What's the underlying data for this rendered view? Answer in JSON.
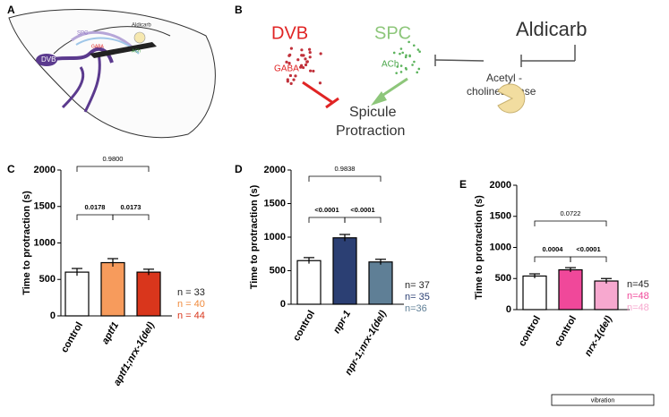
{
  "panel_a": {
    "label": "A",
    "dvb": "DVB",
    "spc": "SPC",
    "ach": "ACh",
    "gaba": "GABA",
    "drug": "Aldicarb"
  },
  "panel_b": {
    "label": "B",
    "dvb": "DVB",
    "gaba": "GABA",
    "spc": "SPC",
    "ach": "ACh",
    "drug": "Aldicarb",
    "enzyme_line1": "Acetyl -",
    "enzyme_line2": "cholinesterase",
    "outcome_line1": "Spicule",
    "outcome_line2": "Protraction"
  },
  "chart_data": [
    {
      "type": "bar",
      "panel_label": "C",
      "ylabel": "Time to protraction (s)",
      "categories": [
        "control",
        "aptf1",
        "aptf1;nrx-1(del)"
      ],
      "category_italic": [
        false,
        true,
        true
      ],
      "values": [
        600,
        730,
        600
      ],
      "errors": [
        50,
        55,
        40
      ],
      "colors": [
        "#ffffff",
        "#f79b5c",
        "#d9361c"
      ],
      "ylim": [
        0,
        2000
      ],
      "yticks": [
        0,
        500,
        1000,
        1500,
        2000
      ],
      "n_labels": [
        "n = 33",
        "n = 40",
        "n = 44"
      ],
      "n_colors": [
        "#222222",
        "#f08a3c",
        "#d9361c"
      ],
      "comparisons": [
        "0.9800",
        "0.0178",
        "0.0173"
      ]
    },
    {
      "type": "bar",
      "panel_label": "D",
      "ylabel": "Time to protraction (s)",
      "categories": [
        "control",
        "npr-1",
        "npr-1;nrx-1(del)"
      ],
      "category_italic": [
        false,
        true,
        true
      ],
      "values": [
        650,
        990,
        630
      ],
      "errors": [
        45,
        50,
        40
      ],
      "colors": [
        "#ffffff",
        "#2b3f73",
        "#5f7f96"
      ],
      "ylim": [
        0,
        2000
      ],
      "yticks": [
        0,
        500,
        1000,
        1500,
        2000
      ],
      "n_labels": [
        "n= 37",
        "n= 35",
        "n=36"
      ],
      "n_colors": [
        "#222222",
        "#2b3f73",
        "#5f7f96"
      ],
      "comparisons": [
        "0.9838",
        "<0.0001",
        "<0.0001"
      ]
    },
    {
      "type": "bar",
      "panel_label": "E",
      "ylabel": "Time to protraction (s)",
      "categories": [
        "control",
        "control",
        "nrx-1(del)"
      ],
      "category_italic": [
        false,
        false,
        true
      ],
      "values": [
        540,
        640,
        460
      ],
      "errors": [
        35,
        35,
        40
      ],
      "colors": [
        "#ffffff",
        "#f0489a",
        "#f7a8cf"
      ],
      "ylim": [
        0,
        2000
      ],
      "yticks": [
        0,
        500,
        1000,
        1500,
        2000
      ],
      "n_labels": [
        "n=45",
        "n=48",
        "n=48"
      ],
      "n_colors": [
        "#222222",
        "#f0489a",
        "#f7a8cf"
      ],
      "comparisons": [
        "0.0722",
        "0.0004",
        "<0.0001"
      ],
      "group_label": "vibration"
    }
  ]
}
